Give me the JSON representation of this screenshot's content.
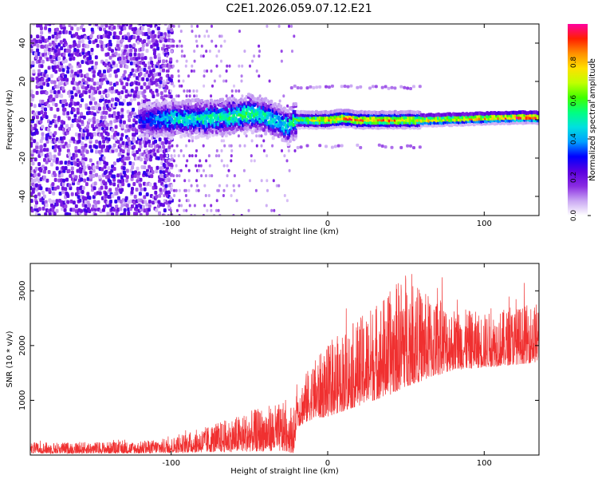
{
  "figure_title": "C2E1.2026.059.07.12.E21",
  "chart_data": [
    {
      "type": "heatmap",
      "title": "C2E1.2026.059.07.12.E21",
      "xlabel": "Height of straight line (km)",
      "ylabel": "Frequency (Hz)",
      "xlim": [
        -190,
        135
      ],
      "ylim": [
        -50,
        50
      ],
      "x_ticks": [
        -100,
        0,
        100
      ],
      "y_ticks": [
        -40,
        -20,
        0,
        20,
        40
      ],
      "colorbar": {
        "label": "Normalized spectral amplitude",
        "range": [
          0,
          1
        ],
        "ticks": [
          0.0,
          0.2,
          0.4,
          0.6,
          0.8
        ],
        "colormap": [
          "#ffffff",
          "#c9a6f3",
          "#8a2be2",
          "#5a00e0",
          "#0000ff",
          "#00a0ff",
          "#00e0e0",
          "#00ff80",
          "#40ff00",
          "#c0ff00",
          "#ffe000",
          "#ff9000",
          "#ff2000",
          "#ff00a0"
        ]
      },
      "noise_region": {
        "x_range": [
          -190,
          -105
        ],
        "freq_range": [
          -50,
          50
        ]
      },
      "signal_band": {
        "x": [
          -120,
          -100,
          -80,
          -60,
          -50,
          -40,
          -30,
          -25,
          -20,
          -10,
          0,
          10,
          20,
          40,
          60,
          80,
          100,
          120,
          135
        ],
        "center_freq": [
          0,
          1,
          1,
          2,
          4,
          2,
          -1,
          -3,
          0,
          0,
          0,
          1,
          0,
          0,
          0,
          0.5,
          1,
          1.5,
          1.5
        ],
        "peak_amplitude": [
          0.3,
          0.5,
          0.55,
          0.55,
          0.6,
          0.55,
          0.5,
          0.5,
          0.6,
          0.75,
          0.85,
          0.9,
          0.9,
          0.85,
          0.8,
          0.8,
          0.85,
          0.95,
          0.95
        ]
      },
      "harmonic_bands": {
        "freq": [
          17,
          -14
        ],
        "x_range": [
          -25,
          60
        ]
      }
    },
    {
      "type": "line",
      "xlabel": "Height of straight line (km)",
      "ylabel": "SNR (10 * v/v)",
      "xlim": [
        -190,
        135
      ],
      "ylim": [
        0,
        3500
      ],
      "x_ticks": [
        -100,
        0,
        100
      ],
      "y_ticks": [
        1000,
        2000,
        3000
      ],
      "series": [
        {
          "name": "SNR",
          "color": "#f03030",
          "envelope_x": [
            -190,
            -150,
            -120,
            -100,
            -80,
            -60,
            -40,
            -30,
            -25,
            -21,
            -20,
            -10,
            0,
            10,
            20,
            30,
            40,
            50,
            60,
            70,
            80,
            100,
            120,
            135
          ],
          "envelope_low": [
            30,
            30,
            30,
            40,
            50,
            60,
            70,
            70,
            60,
            30,
            500,
            650,
            700,
            800,
            900,
            1000,
            1100,
            1250,
            1350,
            1450,
            1550,
            1600,
            1650,
            1700
          ],
          "envelope_high": [
            230,
            240,
            250,
            320,
            500,
            700,
            900,
            950,
            950,
            900,
            1200,
            1700,
            2000,
            2300,
            2500,
            2800,
            3000,
            3400,
            3000,
            2900,
            2700,
            2600,
            2700,
            2800
          ]
        }
      ]
    }
  ]
}
